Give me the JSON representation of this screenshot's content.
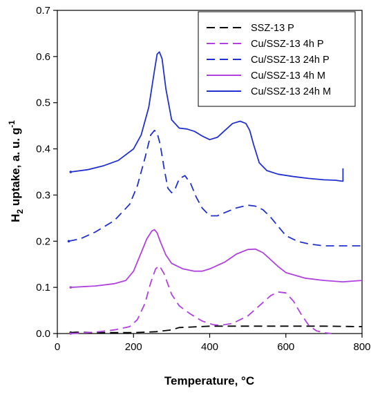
{
  "chart_data": {
    "type": "line",
    "xlabel": "Temperature, °C",
    "ylabel": {
      "prefix": "H",
      "sub": "2",
      "main": " uptake, a. u. g",
      "sup": "-1"
    },
    "xlim": [
      0,
      800
    ],
    "ylim": [
      0,
      0.7
    ],
    "x_ticks": [
      0,
      200,
      400,
      600,
      800
    ],
    "y_ticks": [
      0.0,
      0.1,
      0.2,
      0.3,
      0.4,
      0.5,
      0.6,
      0.7
    ],
    "y_tick_labels": [
      "0.0",
      "0.1",
      "0.2",
      "0.3",
      "0.4",
      "0.5",
      "0.6",
      "0.7"
    ],
    "grid": false,
    "legend_position": "top-right",
    "series": [
      {
        "name": "SSZ-13 P",
        "color": "#000000",
        "style": "dashed",
        "x": [
          35,
          50,
          100,
          200,
          260,
          300,
          320,
          350,
          400,
          450,
          500,
          600,
          700,
          800
        ],
        "y": [
          0.002,
          0.003,
          0.002,
          0.002,
          0.004,
          0.008,
          0.013,
          0.014,
          0.016,
          0.016,
          0.016,
          0.016,
          0.016,
          0.015
        ]
      },
      {
        "name": "Cu/SSZ-13 4h P",
        "color": "#b040e0",
        "style": "dashed",
        "x": [
          35,
          100,
          150,
          190,
          210,
          230,
          245,
          258,
          268,
          280,
          300,
          320,
          350,
          380,
          410,
          430,
          460,
          500,
          530,
          560,
          580,
          600,
          620,
          640,
          660,
          680,
          700,
          720
        ],
        "y": [
          0.0,
          0.003,
          0.008,
          0.015,
          0.03,
          0.065,
          0.11,
          0.14,
          0.147,
          0.13,
          0.085,
          0.06,
          0.042,
          0.027,
          0.019,
          0.018,
          0.022,
          0.038,
          0.06,
          0.082,
          0.09,
          0.088,
          0.07,
          0.042,
          0.018,
          0.006,
          0.002,
          0.0
        ]
      },
      {
        "name": "Cu/SSZ-13 24h P",
        "color": "#2030d0",
        "style": "dashed",
        "x": [
          30,
          60,
          100,
          150,
          190,
          210,
          230,
          245,
          255,
          262,
          270,
          280,
          290,
          300,
          310,
          320,
          335,
          350,
          365,
          380,
          400,
          420,
          440,
          470,
          500,
          520,
          540,
          560,
          580,
          600,
          630,
          660,
          700,
          750,
          800
        ],
        "y": [
          0.2,
          0.205,
          0.22,
          0.245,
          0.28,
          0.32,
          0.38,
          0.43,
          0.44,
          0.435,
          0.41,
          0.36,
          0.315,
          0.305,
          0.315,
          0.335,
          0.342,
          0.325,
          0.295,
          0.272,
          0.255,
          0.255,
          0.262,
          0.272,
          0.278,
          0.276,
          0.268,
          0.252,
          0.232,
          0.212,
          0.2,
          0.194,
          0.19,
          0.19,
          0.19
        ]
      },
      {
        "name": "Cu/SSZ-13 4h M",
        "color": "#b040e0",
        "style": "solid",
        "x": [
          35,
          100,
          150,
          180,
          200,
          220,
          235,
          248,
          255,
          262,
          270,
          285,
          300,
          330,
          360,
          380,
          400,
          440,
          470,
          500,
          520,
          540,
          560,
          580,
          600,
          650,
          700,
          750,
          800
        ],
        "y": [
          0.1,
          0.103,
          0.108,
          0.115,
          0.135,
          0.175,
          0.205,
          0.222,
          0.225,
          0.218,
          0.2,
          0.17,
          0.152,
          0.14,
          0.135,
          0.135,
          0.14,
          0.155,
          0.172,
          0.182,
          0.183,
          0.175,
          0.16,
          0.145,
          0.132,
          0.12,
          0.115,
          0.112,
          0.115
        ]
      },
      {
        "name": "Cu/SSZ-13 24h M",
        "color": "#2030d0",
        "style": "solid",
        "x": [
          35,
          80,
          120,
          160,
          200,
          220,
          240,
          255,
          262,
          268,
          275,
          285,
          300,
          320,
          340,
          360,
          380,
          400,
          420,
          440,
          460,
          480,
          495,
          505,
          515,
          530,
          550,
          580,
          620,
          660,
          700,
          730,
          748,
          750,
          750
        ],
        "y": [
          0.35,
          0.355,
          0.363,
          0.375,
          0.4,
          0.43,
          0.49,
          0.57,
          0.605,
          0.61,
          0.595,
          0.53,
          0.463,
          0.445,
          0.443,
          0.438,
          0.428,
          0.42,
          0.425,
          0.44,
          0.455,
          0.46,
          0.455,
          0.44,
          0.41,
          0.37,
          0.353,
          0.345,
          0.34,
          0.336,
          0.333,
          0.332,
          0.33,
          0.33,
          0.358
        ]
      }
    ]
  }
}
